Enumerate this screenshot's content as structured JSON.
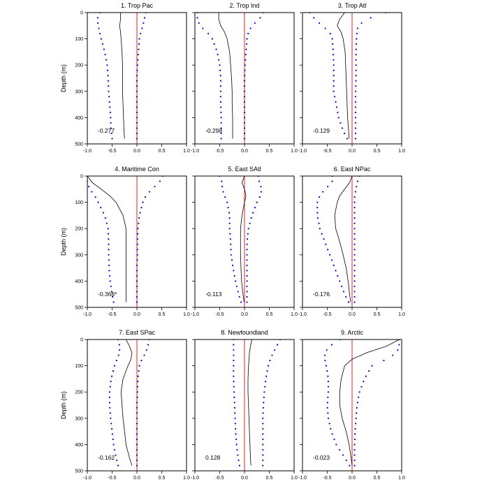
{
  "chart_data": {
    "type": "line",
    "ylabel": "Depth (m)",
    "xlim": [
      -1.0,
      1.0
    ],
    "ylim": [
      0,
      500
    ],
    "xticks": [
      -1.0,
      -0.5,
      0.0,
      0.5,
      1.0
    ],
    "xtick_labels": [
      "-1.0",
      "-0.5",
      "0.0",
      "0.5",
      "1.0"
    ],
    "yticks": [
      0,
      100,
      200,
      300,
      400,
      500
    ],
    "ytick_labels": [
      "0",
      "100",
      "200",
      "300",
      "400",
      "500"
    ],
    "colors": {
      "zero_line": "#ff0000",
      "bounds": "#0000cc",
      "mean": "#000000"
    },
    "panels": [
      {
        "title": "1. Trop Pac",
        "value_label": "-0.277",
        "depth": [
          0,
          25,
          50,
          75,
          100,
          150,
          200,
          250,
          300,
          350,
          400,
          450,
          480
        ],
        "mean": [
          -0.33,
          -0.33,
          -0.35,
          -0.33,
          -0.32,
          -0.3,
          -0.29,
          -0.29,
          -0.29,
          -0.28,
          -0.27,
          -0.26,
          -0.25
        ],
        "upper": [
          0.18,
          0.15,
          0.12,
          0.08,
          0.05,
          0.03,
          0.01,
          0.0,
          0.0,
          0.0,
          0.0,
          0.0,
          0.0
        ],
        "lower": [
          -0.75,
          -0.8,
          -0.78,
          -0.75,
          -0.72,
          -0.65,
          -0.6,
          -0.58,
          -0.57,
          -0.55,
          -0.53,
          -0.52,
          -0.5
        ]
      },
      {
        "title": "2. Trop Ind",
        "value_label": "-0.298",
        "depth": [
          0,
          25,
          50,
          75,
          100,
          150,
          200,
          250,
          300,
          350,
          400,
          450,
          480
        ],
        "mean": [
          -0.52,
          -0.52,
          -0.48,
          -0.4,
          -0.35,
          -0.3,
          -0.28,
          -0.26,
          -0.25,
          -0.25,
          -0.24,
          -0.24,
          -0.24
        ],
        "upper": [
          0.38,
          0.3,
          0.15,
          0.08,
          0.05,
          0.03,
          0.01,
          0.0,
          0.0,
          0.0,
          0.0,
          0.0,
          0.0
        ],
        "lower": [
          -0.95,
          -0.95,
          -0.9,
          -0.75,
          -0.65,
          -0.55,
          -0.5,
          -0.48,
          -0.48,
          -0.48,
          -0.47,
          -0.47,
          -0.47
        ]
      },
      {
        "title": "3. Trop Atl",
        "value_label": "-0.129",
        "depth": [
          0,
          25,
          50,
          75,
          100,
          150,
          200,
          250,
          300,
          350,
          400,
          450,
          480
        ],
        "mean": [
          -0.15,
          -0.25,
          -0.3,
          -0.22,
          -0.18,
          -0.14,
          -0.13,
          -0.12,
          -0.11,
          -0.1,
          -0.09,
          -0.07,
          -0.06
        ],
        "upper": [
          0.68,
          0.3,
          0.12,
          0.1,
          0.09,
          0.08,
          0.08,
          0.08,
          0.07,
          0.07,
          0.07,
          0.07,
          0.07
        ],
        "lower": [
          -0.85,
          -0.75,
          -0.6,
          -0.45,
          -0.4,
          -0.38,
          -0.37,
          -0.37,
          -0.37,
          -0.32,
          -0.27,
          -0.18,
          -0.1
        ]
      },
      {
        "title": "4. Maritime Con",
        "value_label": "-0.368*",
        "depth": [
          0,
          25,
          50,
          75,
          100,
          150,
          200,
          250,
          300,
          350,
          400,
          450,
          480
        ],
        "mean": [
          -1.0,
          -0.9,
          -0.72,
          -0.55,
          -0.42,
          -0.28,
          -0.22,
          -0.22,
          -0.22,
          -0.22,
          -0.22,
          -0.22,
          -0.22
        ],
        "upper": [
          0.52,
          0.45,
          0.3,
          0.18,
          0.12,
          0.05,
          0.02,
          0.01,
          0.01,
          0.0,
          0.0,
          0.0,
          0.0
        ],
        "lower": [
          -1.0,
          -1.0,
          -0.95,
          -0.85,
          -0.78,
          -0.65,
          -0.58,
          -0.57,
          -0.57,
          -0.56,
          -0.54,
          -0.5,
          -0.47
        ]
      },
      {
        "title": "5. East SAtl",
        "value_label": "-0.113",
        "depth": [
          0,
          25,
          50,
          75,
          100,
          150,
          200,
          250,
          300,
          350,
          400,
          450,
          480
        ],
        "mean": [
          0.0,
          -0.05,
          0.0,
          0.03,
          0.0,
          -0.05,
          -0.08,
          -0.08,
          -0.08,
          -0.07,
          -0.06,
          -0.03,
          -0.01
        ],
        "upper": [
          0.28,
          0.3,
          0.35,
          0.32,
          0.25,
          0.15,
          0.08,
          0.05,
          0.05,
          0.05,
          0.05,
          0.05,
          0.05
        ],
        "lower": [
          -0.5,
          -0.45,
          -0.45,
          -0.4,
          -0.35,
          -0.3,
          -0.3,
          -0.28,
          -0.27,
          -0.23,
          -0.18,
          -0.12,
          -0.07
        ]
      },
      {
        "title": "6. East NPac",
        "value_label": "-0.176",
        "depth": [
          0,
          25,
          50,
          75,
          100,
          150,
          200,
          250,
          300,
          350,
          400,
          450,
          480
        ],
        "mean": [
          0.0,
          -0.05,
          -0.15,
          -0.25,
          -0.3,
          -0.35,
          -0.33,
          -0.25,
          -0.18,
          -0.12,
          -0.08,
          -0.05,
          -0.03
        ],
        "upper": [
          0.15,
          0.1,
          0.08,
          0.05,
          0.05,
          0.05,
          0.05,
          0.05,
          0.05,
          0.05,
          0.05,
          0.05,
          0.05
        ],
        "lower": [
          -0.4,
          -0.4,
          -0.55,
          -0.65,
          -0.7,
          -0.7,
          -0.65,
          -0.55,
          -0.45,
          -0.35,
          -0.25,
          -0.15,
          -0.07
        ]
      },
      {
        "title": "7. East SPac",
        "value_label": "-0.162",
        "depth": [
          0,
          25,
          50,
          75,
          100,
          150,
          200,
          250,
          300,
          350,
          400,
          450,
          480
        ],
        "mean": [
          -0.22,
          -0.15,
          -0.1,
          -0.12,
          -0.18,
          -0.28,
          -0.32,
          -0.3,
          -0.28,
          -0.25,
          -0.22,
          -0.15,
          -0.1
        ],
        "upper": [
          0.25,
          0.22,
          0.18,
          0.1,
          0.05,
          0.02,
          0.01,
          0.0,
          0.0,
          0.0,
          0.0,
          0.0,
          0.0
        ],
        "lower": [
          -0.38,
          -0.35,
          -0.35,
          -0.4,
          -0.45,
          -0.52,
          -0.55,
          -0.55,
          -0.53,
          -0.5,
          -0.47,
          -0.42,
          -0.38
        ]
      },
      {
        "title": "8. Newfoundland",
        "value_label": "0.128",
        "depth": [
          0,
          25,
          50,
          75,
          100,
          150,
          200,
          250,
          300,
          350,
          400,
          450,
          480
        ],
        "mean": [
          0.15,
          0.12,
          0.1,
          0.09,
          0.08,
          0.07,
          0.07,
          0.08,
          0.09,
          0.1,
          0.11,
          0.12,
          0.13
        ],
        "upper": [
          0.72,
          0.65,
          0.58,
          0.52,
          0.48,
          0.43,
          0.4,
          0.38,
          0.37,
          0.37,
          0.37,
          0.37,
          0.37
        ],
        "lower": [
          -0.22,
          -0.22,
          -0.22,
          -0.22,
          -0.22,
          -0.22,
          -0.21,
          -0.2,
          -0.19,
          -0.18,
          -0.16,
          -0.13,
          -0.1
        ]
      },
      {
        "title": "9. Arctic",
        "value_label": "-0.023",
        "depth": [
          0,
          25,
          50,
          75,
          100,
          150,
          200,
          250,
          300,
          350,
          400,
          450,
          480
        ],
        "mean": [
          0.95,
          0.7,
          0.3,
          0.0,
          -0.15,
          -0.22,
          -0.25,
          -0.25,
          -0.2,
          -0.12,
          -0.06,
          -0.02,
          0.0
        ],
        "upper": [
          0.95,
          0.95,
          0.9,
          0.7,
          0.4,
          0.25,
          0.15,
          0.1,
          0.08,
          0.06,
          0.05,
          0.05,
          0.05
        ],
        "lower": [
          -0.25,
          -0.45,
          -0.55,
          -0.55,
          -0.52,
          -0.48,
          -0.48,
          -0.5,
          -0.48,
          -0.42,
          -0.32,
          -0.15,
          -0.05
        ]
      }
    ]
  }
}
